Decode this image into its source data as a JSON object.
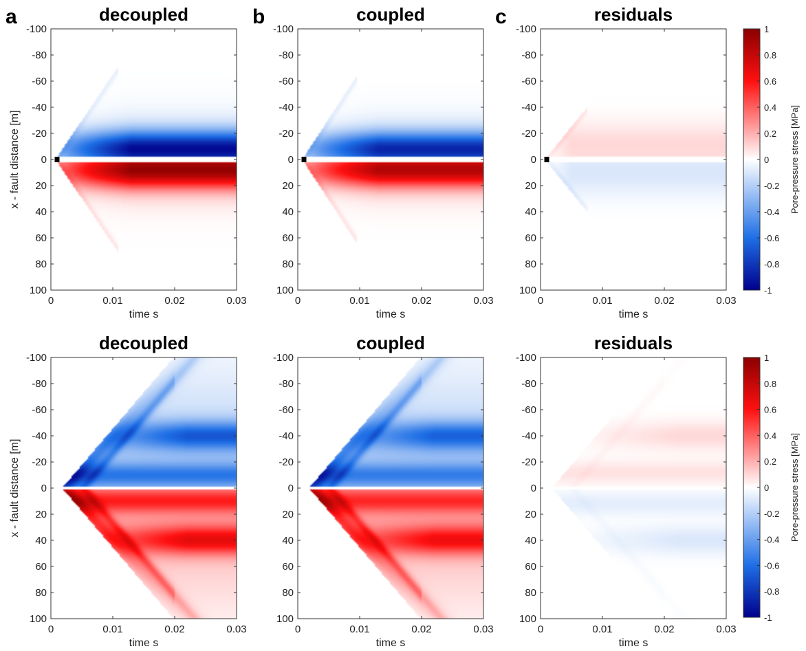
{
  "chart_data": [
    {
      "type": "heatmap",
      "row": "top",
      "panel_letter": "a",
      "title": "decoupled",
      "variant": "decoupled",
      "xlabel": "time s",
      "ylabel": "x - fault distance [m]",
      "xlim": [
        0,
        0.03
      ],
      "ylim": [
        -100,
        100
      ],
      "y_reversed": true,
      "xticks": [
        0,
        0.01,
        0.02,
        0.03
      ],
      "xticklabels": [
        "0",
        "0.01",
        "0.02",
        "0.03"
      ],
      "yticks": [
        -100,
        -80,
        -60,
        -40,
        -20,
        0,
        20,
        40,
        60,
        80,
        100
      ],
      "yticklabels": [
        "-100",
        "-80",
        "-60",
        "-40",
        "-20",
        "0",
        "20",
        "40",
        "60",
        "80",
        "100"
      ],
      "features": {
        "source_time": 0.001,
        "front_end_time": 0.011,
        "front_max_distance": 70,
        "band_center": 8,
        "band_peak": 0.8,
        "band_halfwidth": 30
      }
    },
    {
      "type": "heatmap",
      "row": "top",
      "panel_letter": "b",
      "title": "coupled",
      "variant": "coupled",
      "xlabel": "time s",
      "ylabel": "",
      "xlim": [
        0,
        0.03
      ],
      "ylim": [
        -100,
        100
      ],
      "y_reversed": true,
      "xticks": [
        0,
        0.01,
        0.02,
        0.03
      ],
      "xticklabels": [
        "0",
        "0.01",
        "0.02",
        "0.03"
      ],
      "yticks": [
        -100,
        -80,
        -60,
        -40,
        -20,
        0,
        20,
        40,
        60,
        80,
        100
      ],
      "yticklabels": [
        "-100",
        "-80",
        "-60",
        "-40",
        "-20",
        "0",
        "20",
        "40",
        "60",
        "80",
        "100"
      ],
      "features": {
        "source_time": 0.001,
        "front_end_time": 0.0095,
        "front_max_distance": 62,
        "band_center": 8,
        "band_peak": 0.7,
        "band_halfwidth": 28
      }
    },
    {
      "type": "heatmap",
      "row": "top",
      "panel_letter": "c",
      "title": "residuals",
      "variant": "residual",
      "xlabel": "time s",
      "ylabel": "",
      "xlim": [
        0,
        0.03
      ],
      "ylim": [
        -100,
        100
      ],
      "y_reversed": true,
      "xticks": [
        0,
        0.01,
        0.02,
        0.03
      ],
      "xticklabels": [
        "0",
        "0.01",
        "0.02",
        "0.03"
      ],
      "yticks": [
        -100,
        -80,
        -60,
        -40,
        -20,
        0,
        20,
        40,
        60,
        80,
        100
      ],
      "yticklabels": [
        "-100",
        "-80",
        "-60",
        "-40",
        "-20",
        "0",
        "20",
        "40",
        "60",
        "80",
        "100"
      ],
      "features": {
        "source_time": 0.001,
        "front_end_time": 0.0075,
        "front_max_distance": 38,
        "band_center": 10,
        "band_peak": 0.1,
        "band_halfwidth": 18
      }
    },
    {
      "type": "heatmap",
      "row": "bottom",
      "panel_letter": "",
      "title": "decoupled",
      "variant": "decoupled",
      "xlabel": "time s",
      "ylabel": "x - fault distance [m]",
      "xlim": [
        0,
        0.03
      ],
      "ylim": [
        -100,
        100
      ],
      "y_reversed": true,
      "xticks": [
        0,
        0.01,
        0.02,
        0.03
      ],
      "xticklabels": [
        "0",
        "0.01",
        "0.02",
        "0.03"
      ],
      "yticks": [
        -100,
        -80,
        -60,
        -40,
        -20,
        0,
        20,
        40,
        60,
        80,
        100
      ],
      "yticklabels": [
        "-100",
        "-80",
        "-60",
        "-40",
        "-20",
        "0",
        "20",
        "40",
        "60",
        "80",
        "100"
      ],
      "features": {
        "source_time": 0.002,
        "front_end_time": 0.02,
        "front_max_distance": 100,
        "band_centers": [
          10,
          40
        ],
        "band_peak": 0.65
      }
    },
    {
      "type": "heatmap",
      "row": "bottom",
      "panel_letter": "",
      "title": "coupled",
      "variant": "coupled",
      "xlabel": "time s",
      "ylabel": "",
      "xlim": [
        0,
        0.03
      ],
      "ylim": [
        -100,
        100
      ],
      "y_reversed": true,
      "xticks": [
        0,
        0.01,
        0.02,
        0.03
      ],
      "xticklabels": [
        "0",
        "0.01",
        "0.02",
        "0.03"
      ],
      "yticks": [
        -100,
        -80,
        -60,
        -40,
        -20,
        0,
        20,
        40,
        60,
        80,
        100
      ],
      "yticklabels": [
        "-100",
        "-80",
        "-60",
        "-40",
        "-20",
        "0",
        "20",
        "40",
        "60",
        "80",
        "100"
      ],
      "features": {
        "source_time": 0.002,
        "front_end_time": 0.02,
        "front_max_distance": 100,
        "band_centers": [
          10,
          40
        ],
        "band_peak": 0.6
      }
    },
    {
      "type": "heatmap",
      "row": "bottom",
      "panel_letter": "",
      "title": "residuals",
      "variant": "residual",
      "xlabel": "time s",
      "ylabel": "",
      "xlim": [
        0,
        0.03
      ],
      "ylim": [
        -100,
        100
      ],
      "y_reversed": true,
      "xticks": [
        0,
        0.01,
        0.02,
        0.03
      ],
      "xticklabels": [
        "0",
        "0.01",
        "0.02",
        "0.03"
      ],
      "yticks": [
        -100,
        -80,
        -60,
        -40,
        -20,
        0,
        20,
        40,
        60,
        80,
        100
      ],
      "yticklabels": [
        "-100",
        "-80",
        "-60",
        "-40",
        "-20",
        "0",
        "20",
        "40",
        "60",
        "80",
        "100"
      ],
      "features": {
        "source_time": 0.002,
        "front_end_time": 0.02,
        "front_max_distance": 100,
        "band_centers": [
          12,
          40
        ],
        "band_peak": 0.12
      }
    }
  ],
  "colorbar": {
    "label": "Pore-pressure stress [MPa]",
    "range": [
      -1,
      1
    ],
    "ticks": [
      1,
      0.8,
      0.6,
      0.4,
      0.2,
      0,
      -0.2,
      -0.4,
      -0.6,
      -0.8,
      -1
    ],
    "ticklabels": [
      "1",
      "0.8",
      "0.6",
      "0.4",
      "0.2",
      "0",
      "-0.2",
      "-0.4",
      "-0.6",
      "-0.8",
      "-1"
    ],
    "colormap": "blue-white-red",
    "colors": {
      "min": "#00008b",
      "mid_low": "#1e6fe6",
      "center": "#ffffff",
      "mid_high": "#ff1010",
      "max": "#8b0000"
    }
  }
}
